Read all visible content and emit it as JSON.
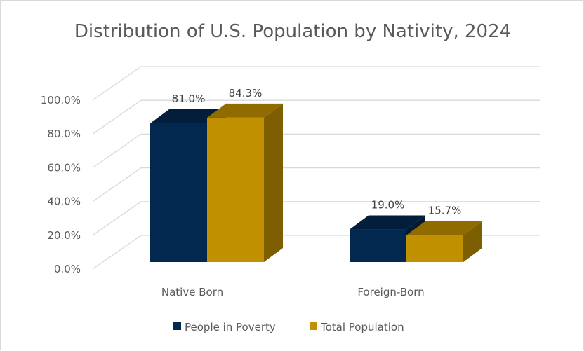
{
  "chart_data": {
    "type": "bar",
    "variant": "3d-clustered-column",
    "title": "Distribution of U.S. Population by Nativity, 2024",
    "xlabel": "",
    "ylabel": "",
    "categories": [
      "Native Born",
      "Foreign-Born"
    ],
    "series": [
      {
        "name": "People in Poverty",
        "values": [
          81.0,
          19.0
        ],
        "labels": [
          "81.0%",
          "19.0%"
        ],
        "color": "#03284f"
      },
      {
        "name": "Total Population",
        "values": [
          84.3,
          15.7
        ],
        "labels": [
          "84.3%",
          "15.7%"
        ],
        "color": "#c09000"
      }
    ],
    "ylim": [
      0,
      100
    ],
    "yticks": [
      0,
      20,
      40,
      60,
      80,
      100
    ],
    "ytick_labels": [
      "0.0%",
      "20.0%",
      "40.0%",
      "60.0%",
      "80.0%",
      "100.0%"
    ],
    "grid": true,
    "legend": "bottom"
  }
}
